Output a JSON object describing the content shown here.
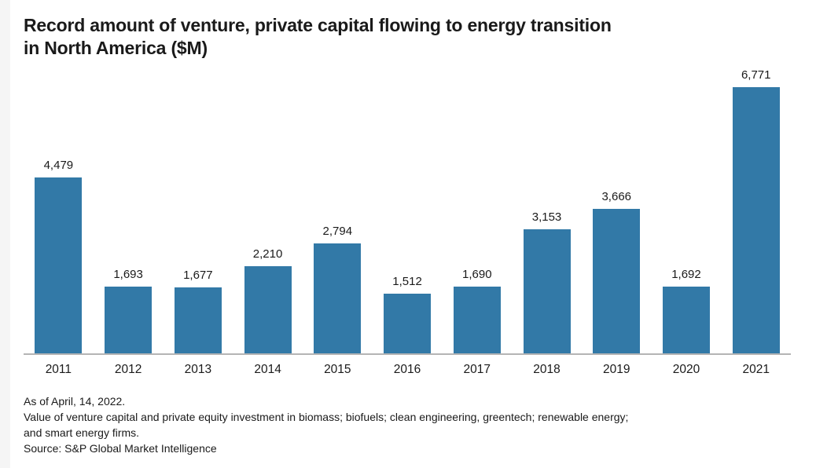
{
  "page": {
    "background_color": "#ffffff",
    "left_edge_color": "#f5f5f5"
  },
  "title": {
    "line1": "Record amount of venture, private capital flowing to energy transition",
    "line2": "in North America ($M)"
  },
  "chart_data": {
    "type": "bar",
    "title": "Record amount of venture, private capital flowing to energy transition in North America ($M)",
    "categories": [
      "2011",
      "2012",
      "2013",
      "2014",
      "2015",
      "2016",
      "2017",
      "2018",
      "2019",
      "2020",
      "2021"
    ],
    "values": [
      4479,
      1693,
      1677,
      2210,
      2794,
      1512,
      1690,
      3153,
      3666,
      1692,
      6771
    ],
    "value_labels": [
      "4,479",
      "1,693",
      "1,677",
      "2,210",
      "2,794",
      "1,512",
      "1,690",
      "3,153",
      "3,666",
      "1,692",
      "6,771"
    ],
    "xlabel": "",
    "ylabel": "",
    "ylim": [
      0,
      7000
    ],
    "grid": false,
    "legend_position": "none",
    "data_labels_position": "above bars",
    "bar_color": "#3279A7",
    "axis_line_color": "#b4b4b4",
    "label_color": "#1a1a1a"
  },
  "footnotes": {
    "lines": [
      "As of April, 14, 2022.",
      "Value of venture capital and private equity investment in biomass; biofuels; clean engineering, greentech; renewable energy;",
      "and smart energy firms.",
      "Source: S&P Global Market Intelligence"
    ]
  }
}
